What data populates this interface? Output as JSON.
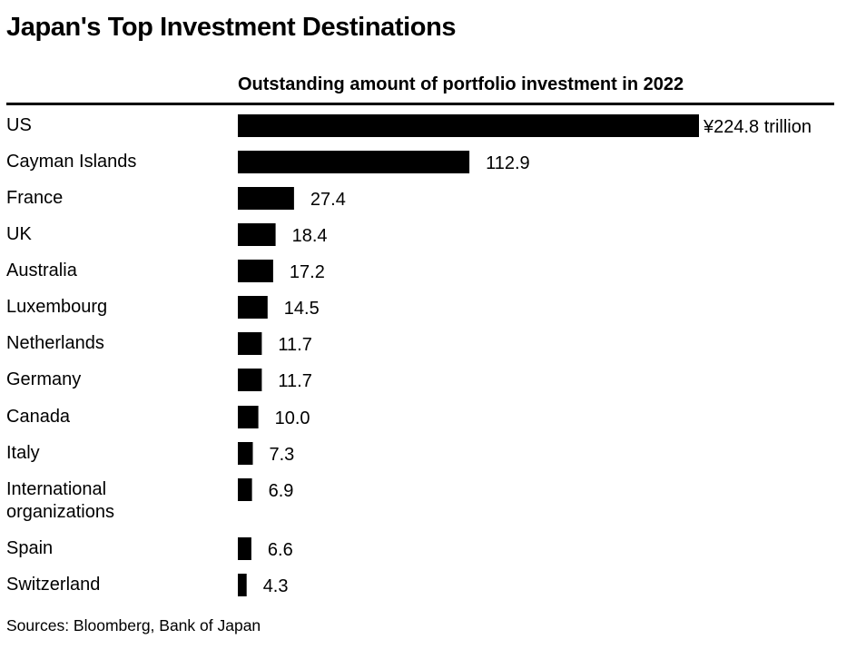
{
  "chart_data": {
    "type": "bar",
    "orientation": "horizontal",
    "title": "Japan's Top Investment Destinations",
    "subtitle": "Outstanding amount of portfolio investment in 2022",
    "categories": [
      "US",
      "Cayman Islands",
      "France",
      "UK",
      "Australia",
      "Luxembourg",
      "Netherlands",
      "Germany",
      "Canada",
      "Italy",
      "International organizations",
      "Spain",
      "Switzerland"
    ],
    "values": [
      224.8,
      112.9,
      27.4,
      18.4,
      17.2,
      14.5,
      11.7,
      11.7,
      10.0,
      7.3,
      6.9,
      6.6,
      4.3
    ],
    "value_labels": [
      "¥224.8 trillion",
      "112.9",
      "27.4",
      "18.4",
      "17.2",
      "14.5",
      "11.7",
      "11.7",
      "10.0",
      "7.3",
      "6.9",
      "6.6",
      "4.3"
    ],
    "unit": "trillion yen",
    "xlim": [
      0,
      224.8
    ],
    "bar_color": "#000000",
    "grid": false,
    "legend": "none",
    "source": "Sources: Bloomberg, Bank of Japan"
  }
}
